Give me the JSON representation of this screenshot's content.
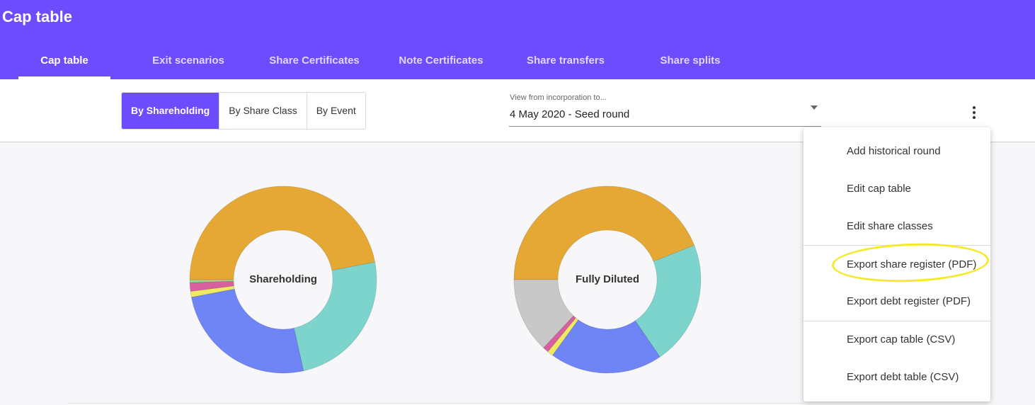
{
  "app": {
    "title": "Cap table"
  },
  "tabs": [
    {
      "label": "Cap table",
      "active": true
    },
    {
      "label": "Exit scenarios"
    },
    {
      "label": "Share Certificates"
    },
    {
      "label": "Note Certificates"
    },
    {
      "label": "Share transfers"
    },
    {
      "label": "Share splits"
    }
  ],
  "toggle": {
    "options": [
      "By Shareholding",
      "By Share Class",
      "By Event"
    ],
    "selected": "By Shareholding"
  },
  "view_select": {
    "label": "View from incorporation to...",
    "value": "4 May 2020 - Seed round"
  },
  "menu": {
    "items": [
      "Add historical round",
      "Edit cap table",
      "Edit share classes",
      "Export share register (PDF)",
      "Export debt register (PDF)",
      "Export cap table (CSV)",
      "Export debt table (CSV)"
    ],
    "highlighted": "Export share register (PDF)"
  },
  "colors": {
    "accent": "#6c4cfc",
    "orange": "#e5a835",
    "teal": "#7dd4cc",
    "blue": "#6f85f5",
    "yellow": "#f0e964",
    "pink": "#d85fa0",
    "green": "#9bd38a",
    "gray": "#c8c8c8",
    "highlight_ring": "#f5ea2a"
  },
  "chart_data": [
    {
      "type": "pie",
      "title": "Shareholding",
      "slices": [
        {
          "value": 47.0,
          "color": "#e5a835"
        },
        {
          "value": 24.5,
          "color": "#7dd4cc"
        },
        {
          "value": 25.5,
          "color": "#6f85f5"
        },
        {
          "value": 1.0,
          "color": "#f0e964"
        },
        {
          "value": 1.5,
          "color": "#d85fa0"
        },
        {
          "value": 0.5,
          "color": "#9bd38a"
        }
      ]
    },
    {
      "type": "pie",
      "title": "Fully Diluted",
      "slices": [
        {
          "value": 44.0,
          "color": "#e5a835"
        },
        {
          "value": 21.5,
          "color": "#7dd4cc"
        },
        {
          "value": 19.5,
          "color": "#6f85f5"
        },
        {
          "value": 1.0,
          "color": "#f0e964"
        },
        {
          "value": 1.0,
          "color": "#d85fa0"
        },
        {
          "value": 13.0,
          "color": "#c8c8c8"
        }
      ]
    }
  ]
}
